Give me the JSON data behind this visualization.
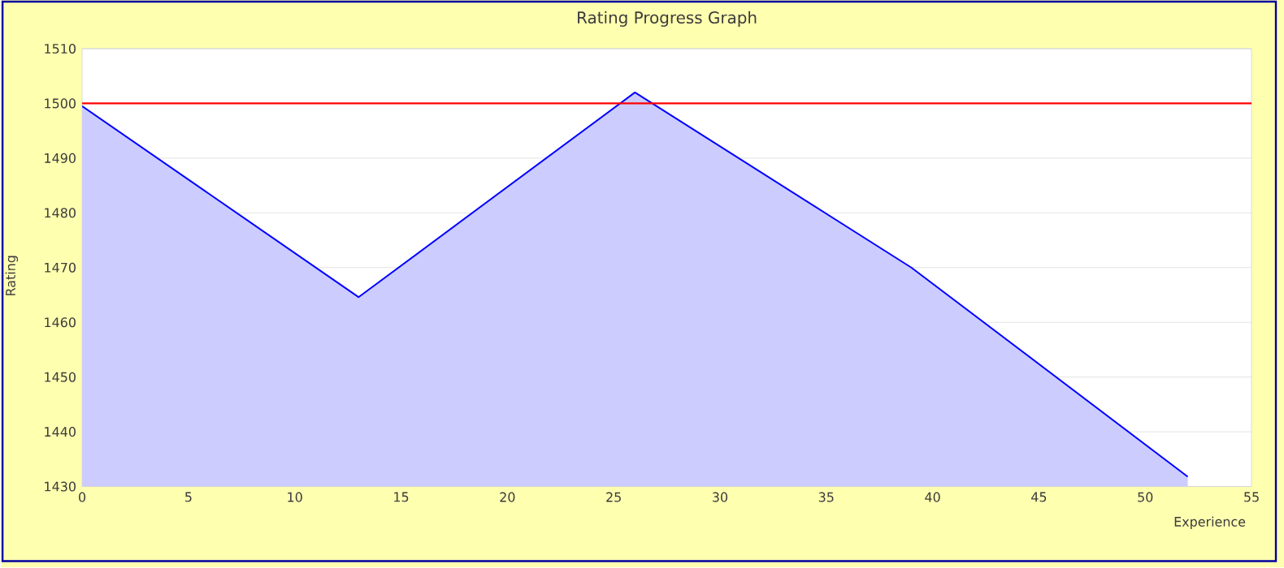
{
  "chart_data": {
    "type": "area",
    "title": "Rating Progress Graph",
    "xlabel": "Experience",
    "ylabel": "Rating",
    "x": [
      0,
      13,
      26,
      39,
      52
    ],
    "series": [
      {
        "color": "#0000ff",
        "values": [
          1499.5,
          1464.6,
          1502,
          1470,
          1431.8
        ]
      }
    ],
    "xlim": [
      0,
      55
    ],
    "xticks": [
      0,
      5,
      10,
      15,
      20,
      25,
      30,
      35,
      40,
      45,
      50,
      55
    ],
    "ylim": [
      1430,
      1510
    ],
    "yticks": [
      1430,
      1440,
      1450,
      1460,
      1470,
      1480,
      1490,
      1500,
      1510
    ],
    "ref_lines": [
      {
        "axis": "y",
        "value": 1500,
        "color": "#ff0000"
      }
    ],
    "grid": "y"
  }
}
